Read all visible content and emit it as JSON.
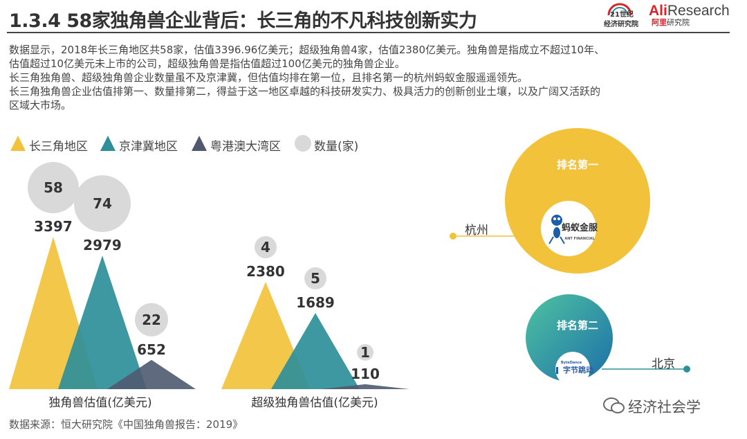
{
  "title": "1.3.4 58家独角兽企业背后：长三角的不凡科技创新实力",
  "logos": {
    "paper": {
      "line1": "21世纪",
      "line2": "经济研究院"
    },
    "ali": {
      "brand_a": "Ali",
      "brand_b": "Research",
      "sub_a": "阿里",
      "sub_b": "研究院"
    }
  },
  "paragraphs": [
    "数据显示，2018年长三角地区共58家，估值3396.96亿美元；超级独角兽4家，估值2380亿美元。独角兽是指成立不超过10年、",
    "估值超过10亿美元未上市的公司，超级独角兽是指估值超过100亿美元的独角兽企业。",
    "长三角独角兽、超级独角兽企业数量虽不及京津冀，但估值均排在第一位，且排名第一的杭州蚂蚁金服遥遥领先。",
    "长三角独角兽企业估值排第一、数量排第二，得益于这一地区卓越的科技研发实力、极具活力的创新创业土壤，以及广阔又活跃的",
    "区域大市场。"
  ],
  "legend": [
    {
      "label": "长三角地区",
      "shape": "triangle",
      "color": "#f2c23a"
    },
    {
      "label": "京津冀地区",
      "shape": "triangle",
      "color": "#2e8f9a"
    },
    {
      "label": "粤港澳大湾区",
      "shape": "triangle",
      "color": "#4f5a70"
    },
    {
      "label": "数量(家)",
      "shape": "circle",
      "color": "#d9d9d9"
    }
  ],
  "chart_data": [
    {
      "type": "bar",
      "style": "overlapping-triangles",
      "xlabel": "独角兽估值(亿美元)",
      "categories": [
        "长三角地区",
        "京津冀地区",
        "粤港澳大湾区"
      ],
      "series": [
        {
          "name": "估值",
          "values": [
            3397,
            2979,
            652
          ],
          "labels": [
            "3397",
            "2979",
            "652"
          ]
        },
        {
          "name": "数量(家)",
          "values": [
            58,
            74,
            22
          ],
          "labels": [
            "58",
            "74",
            "22"
          ]
        }
      ],
      "colors": [
        "#f2c23a",
        "#2e8f9a",
        "#4f5a70"
      ]
    },
    {
      "type": "bar",
      "style": "overlapping-triangles",
      "xlabel": "超级独角兽估值(亿美元)",
      "categories": [
        "长三角地区",
        "京津冀地区",
        "粤港澳大湾区"
      ],
      "series": [
        {
          "name": "估值",
          "values": [
            2380,
            1689,
            110
          ],
          "labels": [
            "2380",
            "1689",
            "110"
          ]
        },
        {
          "name": "数量(家)",
          "values": [
            4,
            5,
            1
          ],
          "labels": [
            "4",
            "5",
            "1"
          ]
        }
      ],
      "colors": [
        "#f2c23a",
        "#2e8f9a",
        "#4f5a70"
      ]
    }
  ],
  "rankings": [
    {
      "rank": "排名第一",
      "city": "杭州",
      "company_cn": "蚂蚁金服",
      "company_en": "ANT FINANCIAL",
      "color": "#f2c23a"
    },
    {
      "rank": "排名第二",
      "city": "北京",
      "company_cn": "字节跳动",
      "company_en": "ByteDance",
      "color": "#2e8f9a"
    }
  ],
  "source": "数据来源：恒大研究院《中国独角兽报告：2019》",
  "watermark": "经济社会学"
}
